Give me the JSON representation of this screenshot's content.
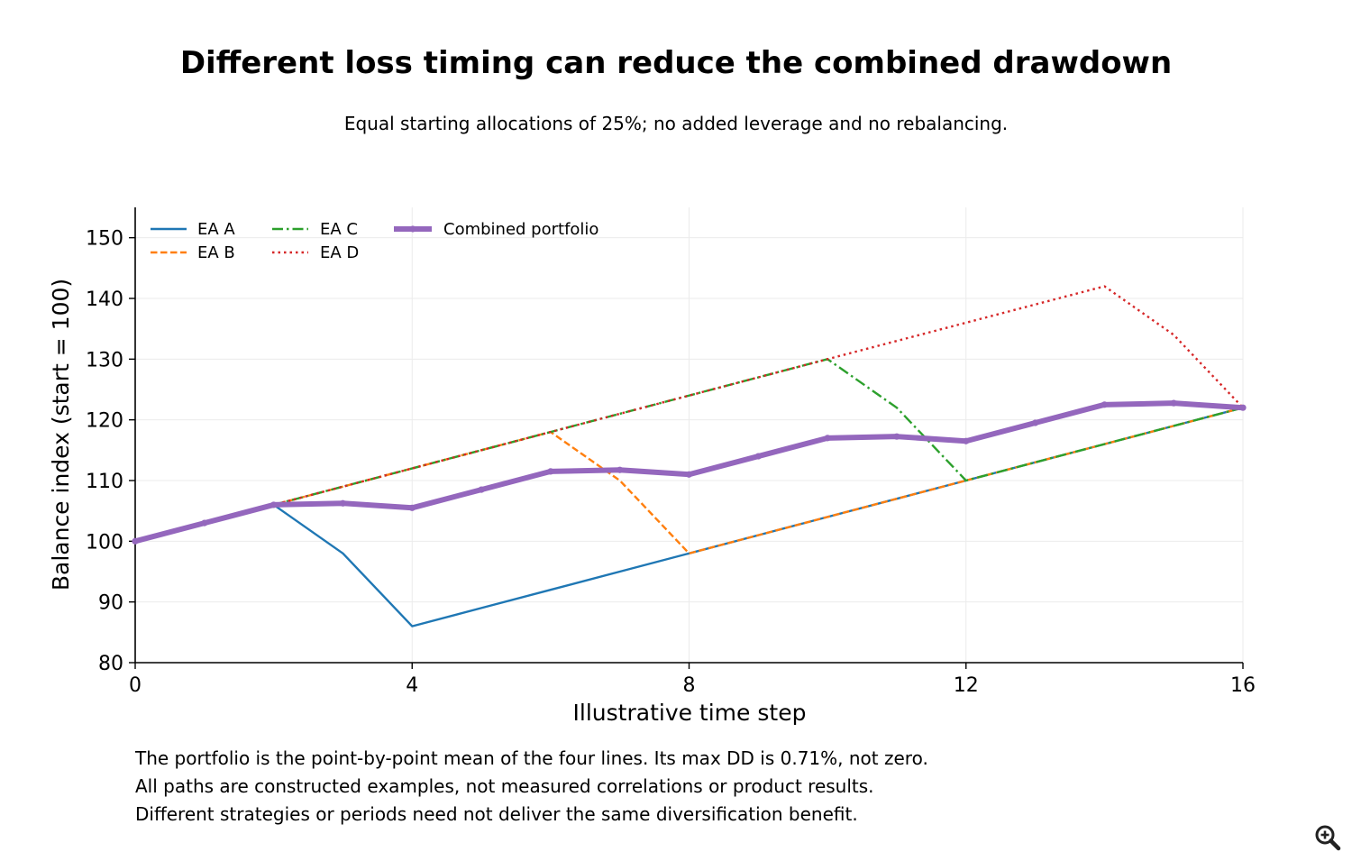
{
  "chart_data": {
    "type": "line",
    "title": "Different loss timing can reduce the combined drawdown",
    "subtitle": "Equal starting allocations of 25%; no added leverage and no rebalancing.",
    "xlabel": "Illustrative time step",
    "ylabel": "Balance index (start = 100)",
    "xlim": [
      0,
      16
    ],
    "ylim": [
      80,
      155
    ],
    "xticks": [
      0,
      4,
      8,
      12,
      16
    ],
    "yticks": [
      80,
      90,
      100,
      110,
      120,
      130,
      140,
      150
    ],
    "grid": true,
    "legend_position": "top-left",
    "x": [
      0,
      1,
      2,
      3,
      4,
      5,
      6,
      7,
      8,
      9,
      10,
      11,
      12,
      13,
      14,
      15,
      16
    ],
    "series": [
      {
        "name": "EA A",
        "color": "#1f77b4",
        "style": "solid",
        "values": [
          100,
          103,
          106,
          98,
          86,
          89,
          92,
          95,
          98,
          101,
          104,
          107,
          110,
          113,
          116,
          119,
          122
        ]
      },
      {
        "name": "EA B",
        "color": "#ff7f0e",
        "style": "dashed",
        "values": [
          100,
          103,
          106,
          109,
          112,
          115,
          118,
          110,
          98,
          101,
          104,
          107,
          110,
          113,
          116,
          119,
          122
        ]
      },
      {
        "name": "EA C",
        "color": "#2ca02c",
        "style": "dashdot",
        "values": [
          100,
          103,
          106,
          109,
          112,
          115,
          118,
          121,
          124,
          127,
          130,
          122,
          110,
          113,
          116,
          119,
          122
        ]
      },
      {
        "name": "EA D",
        "color": "#d62728",
        "style": "dotted",
        "values": [
          100,
          103,
          106,
          109,
          112,
          115,
          118,
          121,
          124,
          127,
          130,
          133,
          136,
          139,
          142,
          134,
          122
        ]
      },
      {
        "name": "Combined portfolio",
        "color": "#9467bd",
        "style": "thick-markers",
        "values": [
          100,
          103,
          106,
          106.25,
          105.5,
          108.5,
          111.5,
          111.75,
          111,
          114,
          117,
          117.25,
          116.5,
          119.5,
          122.5,
          122.75,
          122
        ]
      }
    ]
  },
  "notes": [
    "The portfolio is the point-by-point mean of the four lines. Its max DD is 0.71%, not zero.",
    "All paths are constructed examples, not measured correlations or product results.",
    "Different strategies or periods need not deliver the same diversification benefit."
  ],
  "zoom_icon": "magnifier-plus-icon"
}
